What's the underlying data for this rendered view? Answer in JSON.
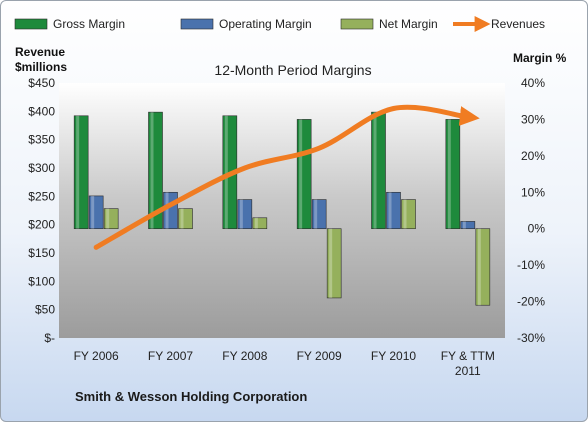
{
  "chart_data": {
    "type": "bar",
    "title": "12-Month Period Margins",
    "footer": "Smith & Wesson Holding Corporation",
    "categories": [
      [
        "FY 2006"
      ],
      [
        "FY 2007"
      ],
      [
        "FY 2008"
      ],
      [
        "FY 2009"
      ],
      [
        "FY 2010"
      ],
      [
        "FY & TTM",
        "2011"
      ]
    ],
    "left_axis": {
      "label_lines": [
        "Revenue",
        "$millions"
      ],
      "min": 0,
      "max": 450,
      "step": 50,
      "tick_labels": [
        "$-",
        "$50",
        "$100",
        "$150",
        "$200",
        "$250",
        "$300",
        "$350",
        "$400",
        "$450"
      ]
    },
    "right_axis": {
      "label": "Margin %",
      "min": -30,
      "max": 40,
      "step": 10,
      "tick_labels": [
        "-30%",
        "-20%",
        "-10%",
        "0%",
        "10%",
        "20%",
        "30%",
        "40%"
      ]
    },
    "series": [
      {
        "name": "Gross Margin",
        "axis": "right",
        "kind": "bar",
        "color": "#1e8a3c",
        "values": [
          31,
          32,
          31,
          30,
          32,
          30
        ]
      },
      {
        "name": "Operating Margin",
        "axis": "right",
        "kind": "bar",
        "color": "#4a72ad",
        "values": [
          9,
          10,
          8,
          8,
          10,
          2
        ]
      },
      {
        "name": "Net Margin",
        "axis": "right",
        "kind": "bar",
        "color": "#95b05c",
        "values": [
          5.5,
          5.5,
          3,
          -19,
          8,
          -21
        ]
      },
      {
        "name": "Revenues",
        "axis": "left",
        "kind": "line",
        "color": "#f07c22",
        "values": [
          160,
          235,
          300,
          335,
          405,
          390
        ]
      }
    ],
    "legend_position": "top",
    "gridlines": false
  }
}
